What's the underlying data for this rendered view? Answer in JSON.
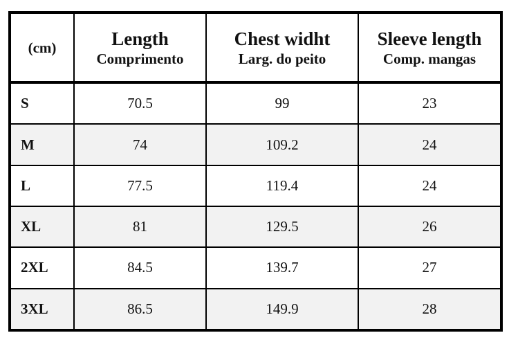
{
  "table": {
    "header": [
      {
        "title": "(cm)"
      },
      {
        "title": "Length",
        "subtitle": "Comprimento"
      },
      {
        "title": "Chest widht",
        "subtitle": "Larg. do peito"
      },
      {
        "title": "Sleeve length",
        "subtitle": "Comp. mangas"
      }
    ],
    "rows": [
      [
        "S",
        "70.5",
        "99",
        "23"
      ],
      [
        "M",
        "74",
        "109.2",
        "24"
      ],
      [
        "L",
        "77.5",
        "119.4",
        "24"
      ],
      [
        "XL",
        "81",
        "129.5",
        "26"
      ],
      [
        "2XL",
        "84.5",
        "139.7",
        "27"
      ],
      [
        "3XL",
        "86.5",
        "149.9",
        "28"
      ]
    ]
  }
}
